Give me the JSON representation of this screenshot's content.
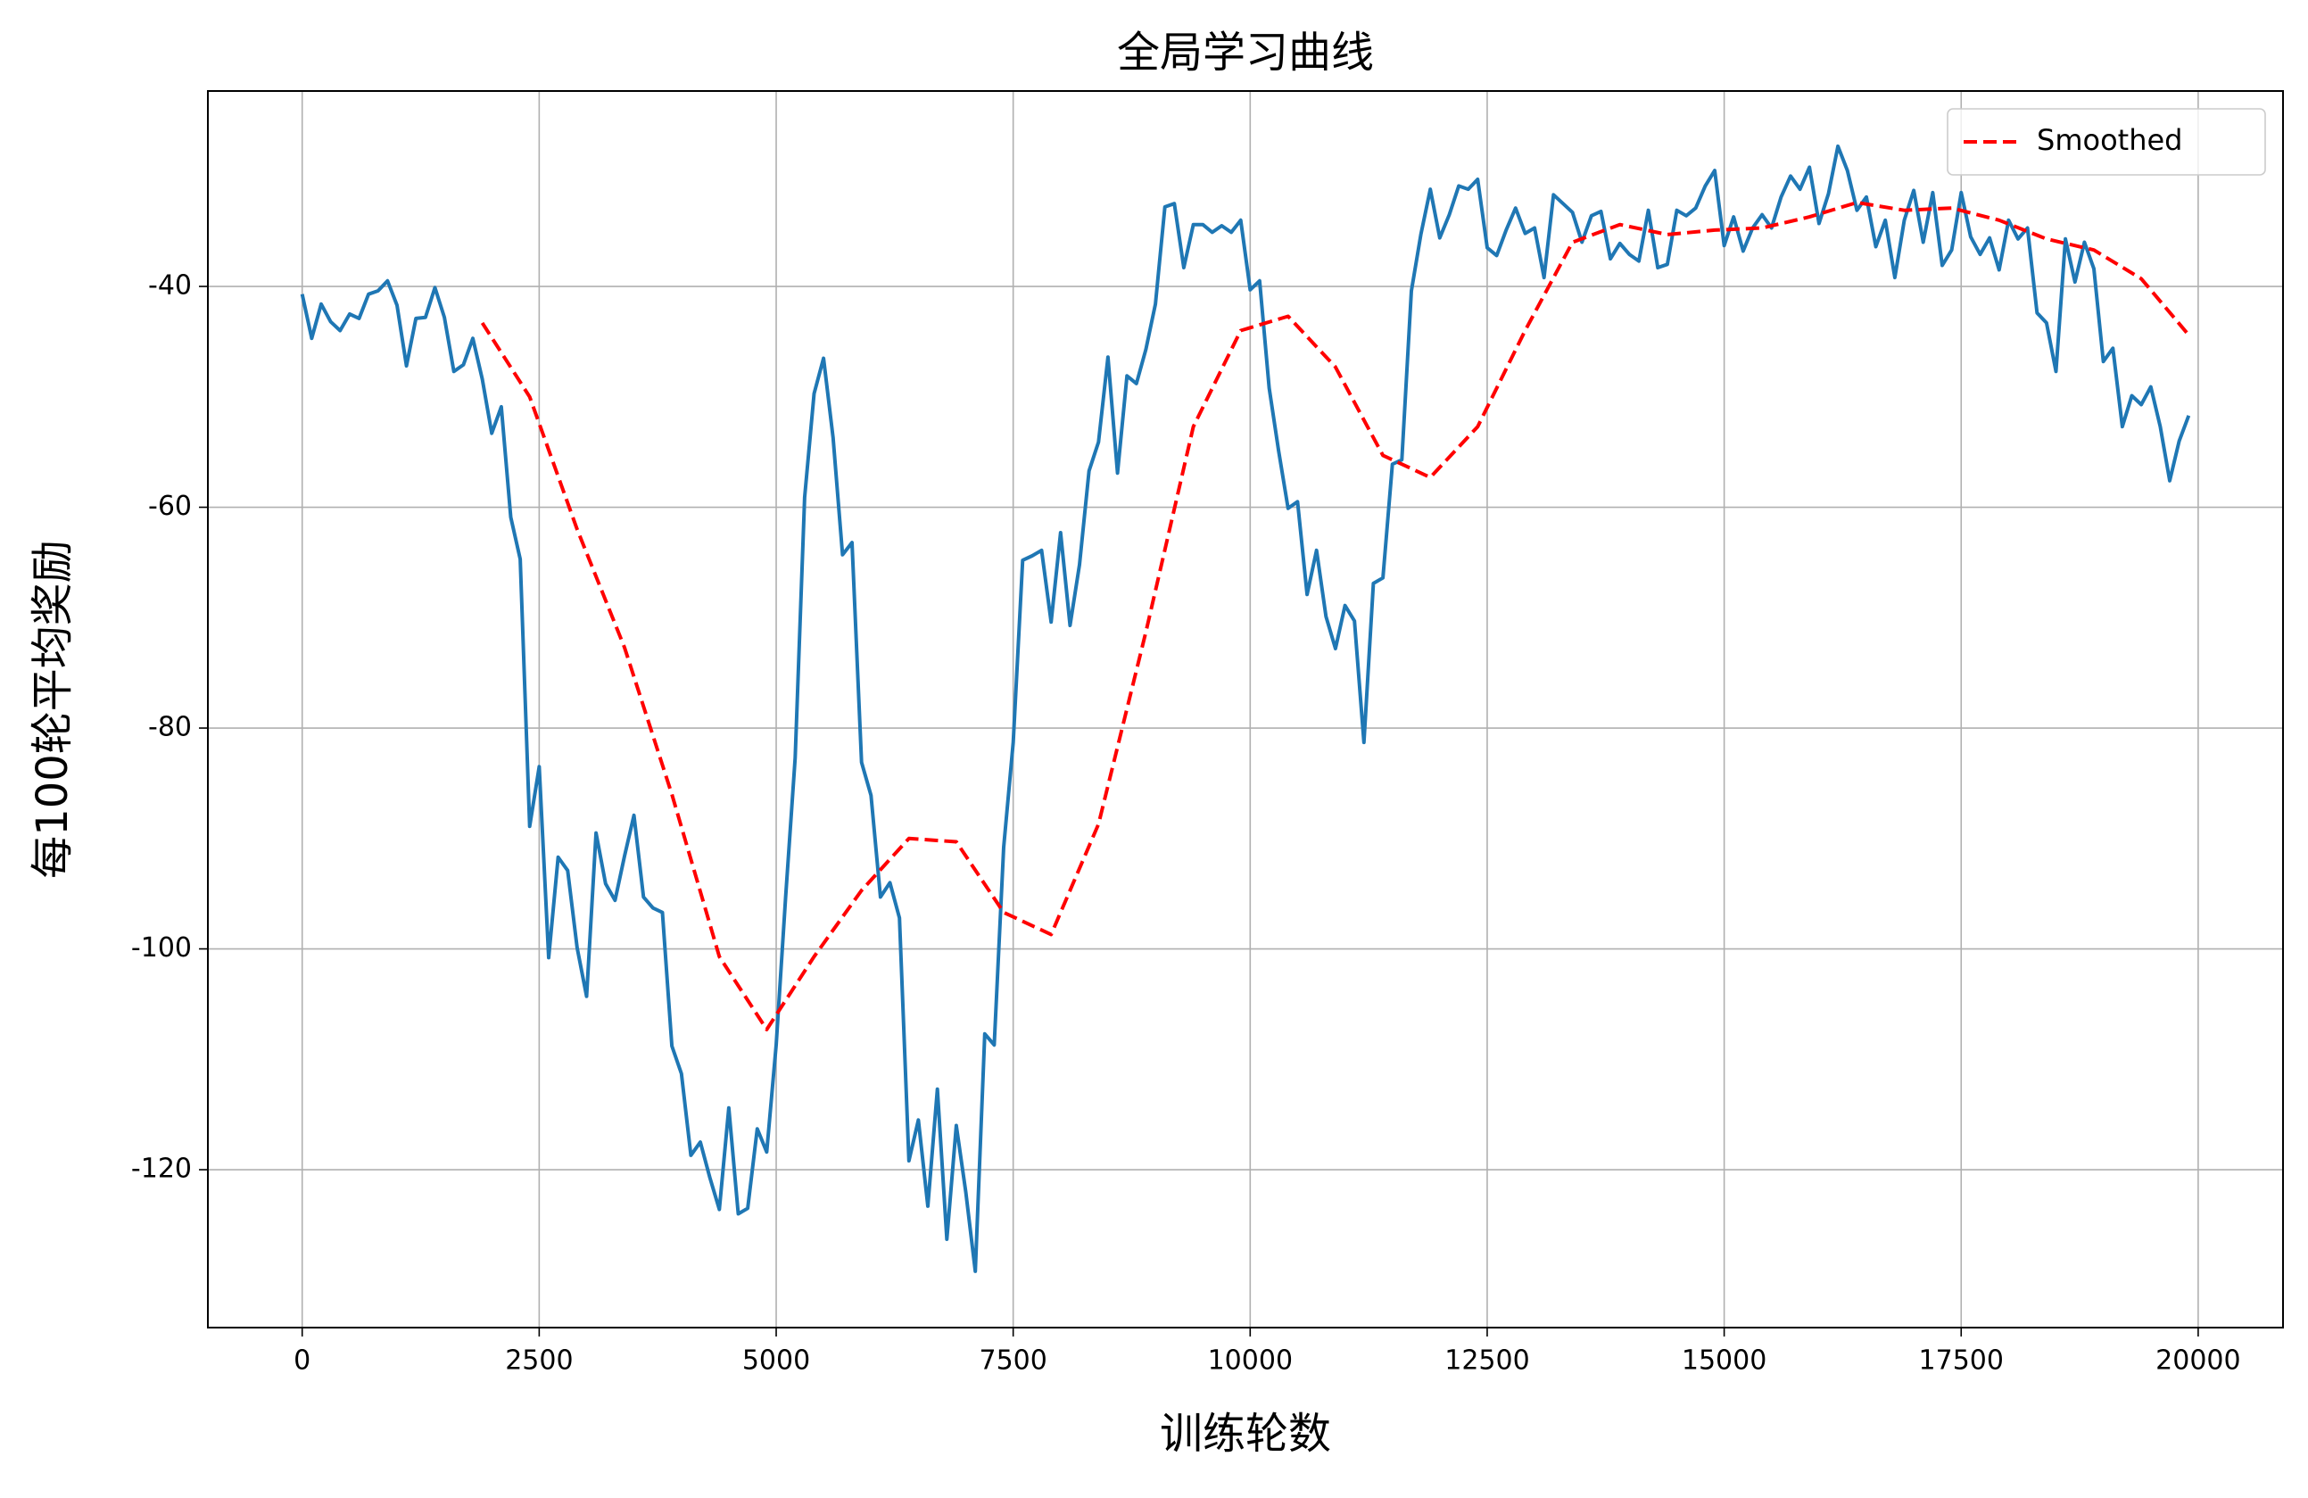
{
  "chart_data": {
    "type": "line",
    "title": "全局学习曲线",
    "x_label": "训练轮数",
    "y_label": "每100轮平均奖励",
    "xlim": [
      -995,
      20895
    ],
    "ylim": [
      -134.3,
      -22.3
    ],
    "xticks": [
      0,
      2500,
      5000,
      7500,
      10000,
      12500,
      15000,
      17500,
      20000
    ],
    "yticks": [
      -120,
      -100,
      -80,
      -60,
      -40
    ],
    "grid": true,
    "legend": "upper right",
    "series": [
      {
        "color": "#1f77b4",
        "dashed": false,
        "x": [
          0,
          100,
          200,
          300,
          400,
          500,
          600,
          700,
          800,
          900,
          1000,
          1100,
          1200,
          1300,
          1400,
          1500,
          1600,
          1700,
          1800,
          1900,
          2000,
          2100,
          2200,
          2300,
          2400,
          2500,
          2600,
          2700,
          2800,
          2900,
          3000,
          3100,
          3200,
          3300,
          3400,
          3500,
          3600,
          3700,
          3800,
          3900,
          4000,
          4100,
          4200,
          4300,
          4400,
          4500,
          4600,
          4700,
          4800,
          4900,
          5000,
          5100,
          5200,
          5300,
          5400,
          5500,
          5600,
          5700,
          5800,
          5900,
          6000,
          6100,
          6200,
          6300,
          6400,
          6500,
          6600,
          6700,
          6800,
          6900,
          7000,
          7100,
          7200,
          7300,
          7400,
          7500,
          7600,
          7700,
          7800,
          7900,
          8000,
          8100,
          8200,
          8300,
          8400,
          8500,
          8600,
          8700,
          8800,
          8900,
          9000,
          9100,
          9200,
          9300,
          9400,
          9500,
          9600,
          9700,
          9800,
          9900,
          10000,
          10100,
          10200,
          10300,
          10400,
          10500,
          10600,
          10700,
          10800,
          10900,
          11000,
          11100,
          11200,
          11300,
          11400,
          11500,
          11600,
          11700,
          11800,
          11900,
          12000,
          12100,
          12200,
          12300,
          12400,
          12500,
          12600,
          12700,
          12800,
          12900,
          13000,
          13100,
          13200,
          13300,
          13400,
          13500,
          13600,
          13700,
          13800,
          13900,
          14000,
          14100,
          14200,
          14300,
          14400,
          14500,
          14600,
          14700,
          14800,
          14900,
          15000,
          15100,
          15200,
          15300,
          15400,
          15500,
          15600,
          15700,
          15800,
          15900,
          16000,
          16100,
          16200,
          16300,
          16400,
          16500,
          16600,
          16700,
          16800,
          16900,
          17000,
          17100,
          17200,
          17300,
          17400,
          17500,
          17600,
          17700,
          17800,
          17900,
          18000,
          18100,
          18200,
          18300,
          18400,
          18500,
          18600,
          18700,
          18800,
          18900,
          19000,
          19100,
          19200,
          19300,
          19400,
          19500,
          19600,
          19700,
          19800,
          19900
        ],
        "values": [
          -40.7,
          -44.7,
          -41.6,
          -43.2,
          -44,
          -42.5,
          -42.9,
          -40.7,
          -40.4,
          -39.5,
          -41.7,
          -47.2,
          -42.9,
          -42.8,
          -40.1,
          -42.8,
          -47.7,
          -47.1,
          -44.7,
          -48.4,
          -53.3,
          -50.9,
          -60.9,
          -64.7,
          -88.9,
          -83.5,
          -100.8,
          -91.7,
          -92.9,
          -99.9,
          -104.3,
          -89.5,
          -94.1,
          -95.6,
          -91.6,
          -87.9,
          -95.3,
          -96.3,
          -96.7,
          -108.8,
          -111.3,
          -118.7,
          -117.5,
          -120.7,
          -123.6,
          -114.4,
          -124,
          -123.5,
          -116.3,
          -118.4,
          -108.7,
          -95.3,
          -82.7,
          -59.1,
          -49.7,
          -46.5,
          -53.7,
          -64.3,
          -63.2,
          -83.1,
          -86.1,
          -95.3,
          -94,
          -97.2,
          -119.2,
          -115.5,
          -123.3,
          -112.7,
          -126.3,
          -116,
          -122,
          -129.2,
          -107.7,
          -108.7,
          -90.8,
          -81.3,
          -64.8,
          -64.4,
          -63.9,
          -70.4,
          -62.3,
          -70.7,
          -65.2,
          -56.7,
          -54.1,
          -46.4,
          -56.9,
          -48.1,
          -48.8,
          -45.7,
          -41.6,
          -32.8,
          -32.5,
          -38.3,
          -34.4,
          -34.4,
          -35.1,
          -34.5,
          -35.1,
          -34,
          -40.3,
          -39.5,
          -49.2,
          -54.9,
          -60.1,
          -59.5,
          -67.9,
          -63.9,
          -69.9,
          -72.8,
          -68.9,
          -70.3,
          -81.3,
          -66.9,
          -66.4,
          -56.1,
          -55.7,
          -40.4,
          -35.3,
          -31.2,
          -35.6,
          -33.5,
          -30.9,
          -31.2,
          -30.3,
          -36.5,
          -37.2,
          -34.9,
          -32.9,
          -35.2,
          -34.7,
          -39.2,
          -31.7,
          -32.5,
          -33.3,
          -36,
          -33.6,
          -33.2,
          -37.5,
          -36.1,
          -37.1,
          -37.7,
          -33.1,
          -38.3,
          -38,
          -33.1,
          -33.6,
          -32.9,
          -30.9,
          -29.5,
          -36.3,
          -33.7,
          -36.8,
          -34.7,
          -33.5,
          -34.7,
          -31.9,
          -30,
          -31.2,
          -29.2,
          -34.3,
          -31.6,
          -27.3,
          -29.5,
          -33.1,
          -31.9,
          -36.4,
          -34,
          -39.2,
          -34,
          -31.3,
          -36,
          -31.5,
          -38.1,
          -36.7,
          -31.5,
          -35.5,
          -37.1,
          -35.6,
          -38.5,
          -34,
          -35.7,
          -34.7,
          -42.4,
          -43.3,
          -47.7,
          -35.7,
          -39.6,
          -36,
          -38.4,
          -46.8,
          -45.6,
          -52.7,
          -49.9,
          -50.7,
          -49.1,
          -52.7,
          -57.6,
          -54,
          -51.7
        ]
      },
      {
        "name": "Smoothed",
        "color": "red",
        "dashed": true,
        "x": [
          1900,
          2400,
          2900,
          3400,
          3900,
          4400,
          4900,
          5400,
          5900,
          6400,
          6900,
          7400,
          7900,
          8400,
          8900,
          9400,
          9900,
          10400,
          10900,
          11400,
          11900,
          12400,
          12900,
          13400,
          13900,
          14400,
          14900,
          15400,
          15900,
          16400,
          16900,
          17400,
          17900,
          18400,
          18900,
          19400,
          19900
        ],
        "values": [
          -43.3,
          -50,
          -62,
          -72.7,
          -86,
          -100.7,
          -107.3,
          -100.7,
          -94.7,
          -90,
          -90.3,
          -96.7,
          -98.7,
          -88.7,
          -71.3,
          -52.7,
          -44,
          -42.7,
          -47.3,
          -55.3,
          -57.3,
          -52.7,
          -44,
          -36,
          -34.4,
          -35.3,
          -34.9,
          -34.7,
          -33.7,
          -32.4,
          -33.1,
          -32.9,
          -34,
          -35.7,
          -36.7,
          -39.3,
          -44.4
        ]
      }
    ]
  }
}
